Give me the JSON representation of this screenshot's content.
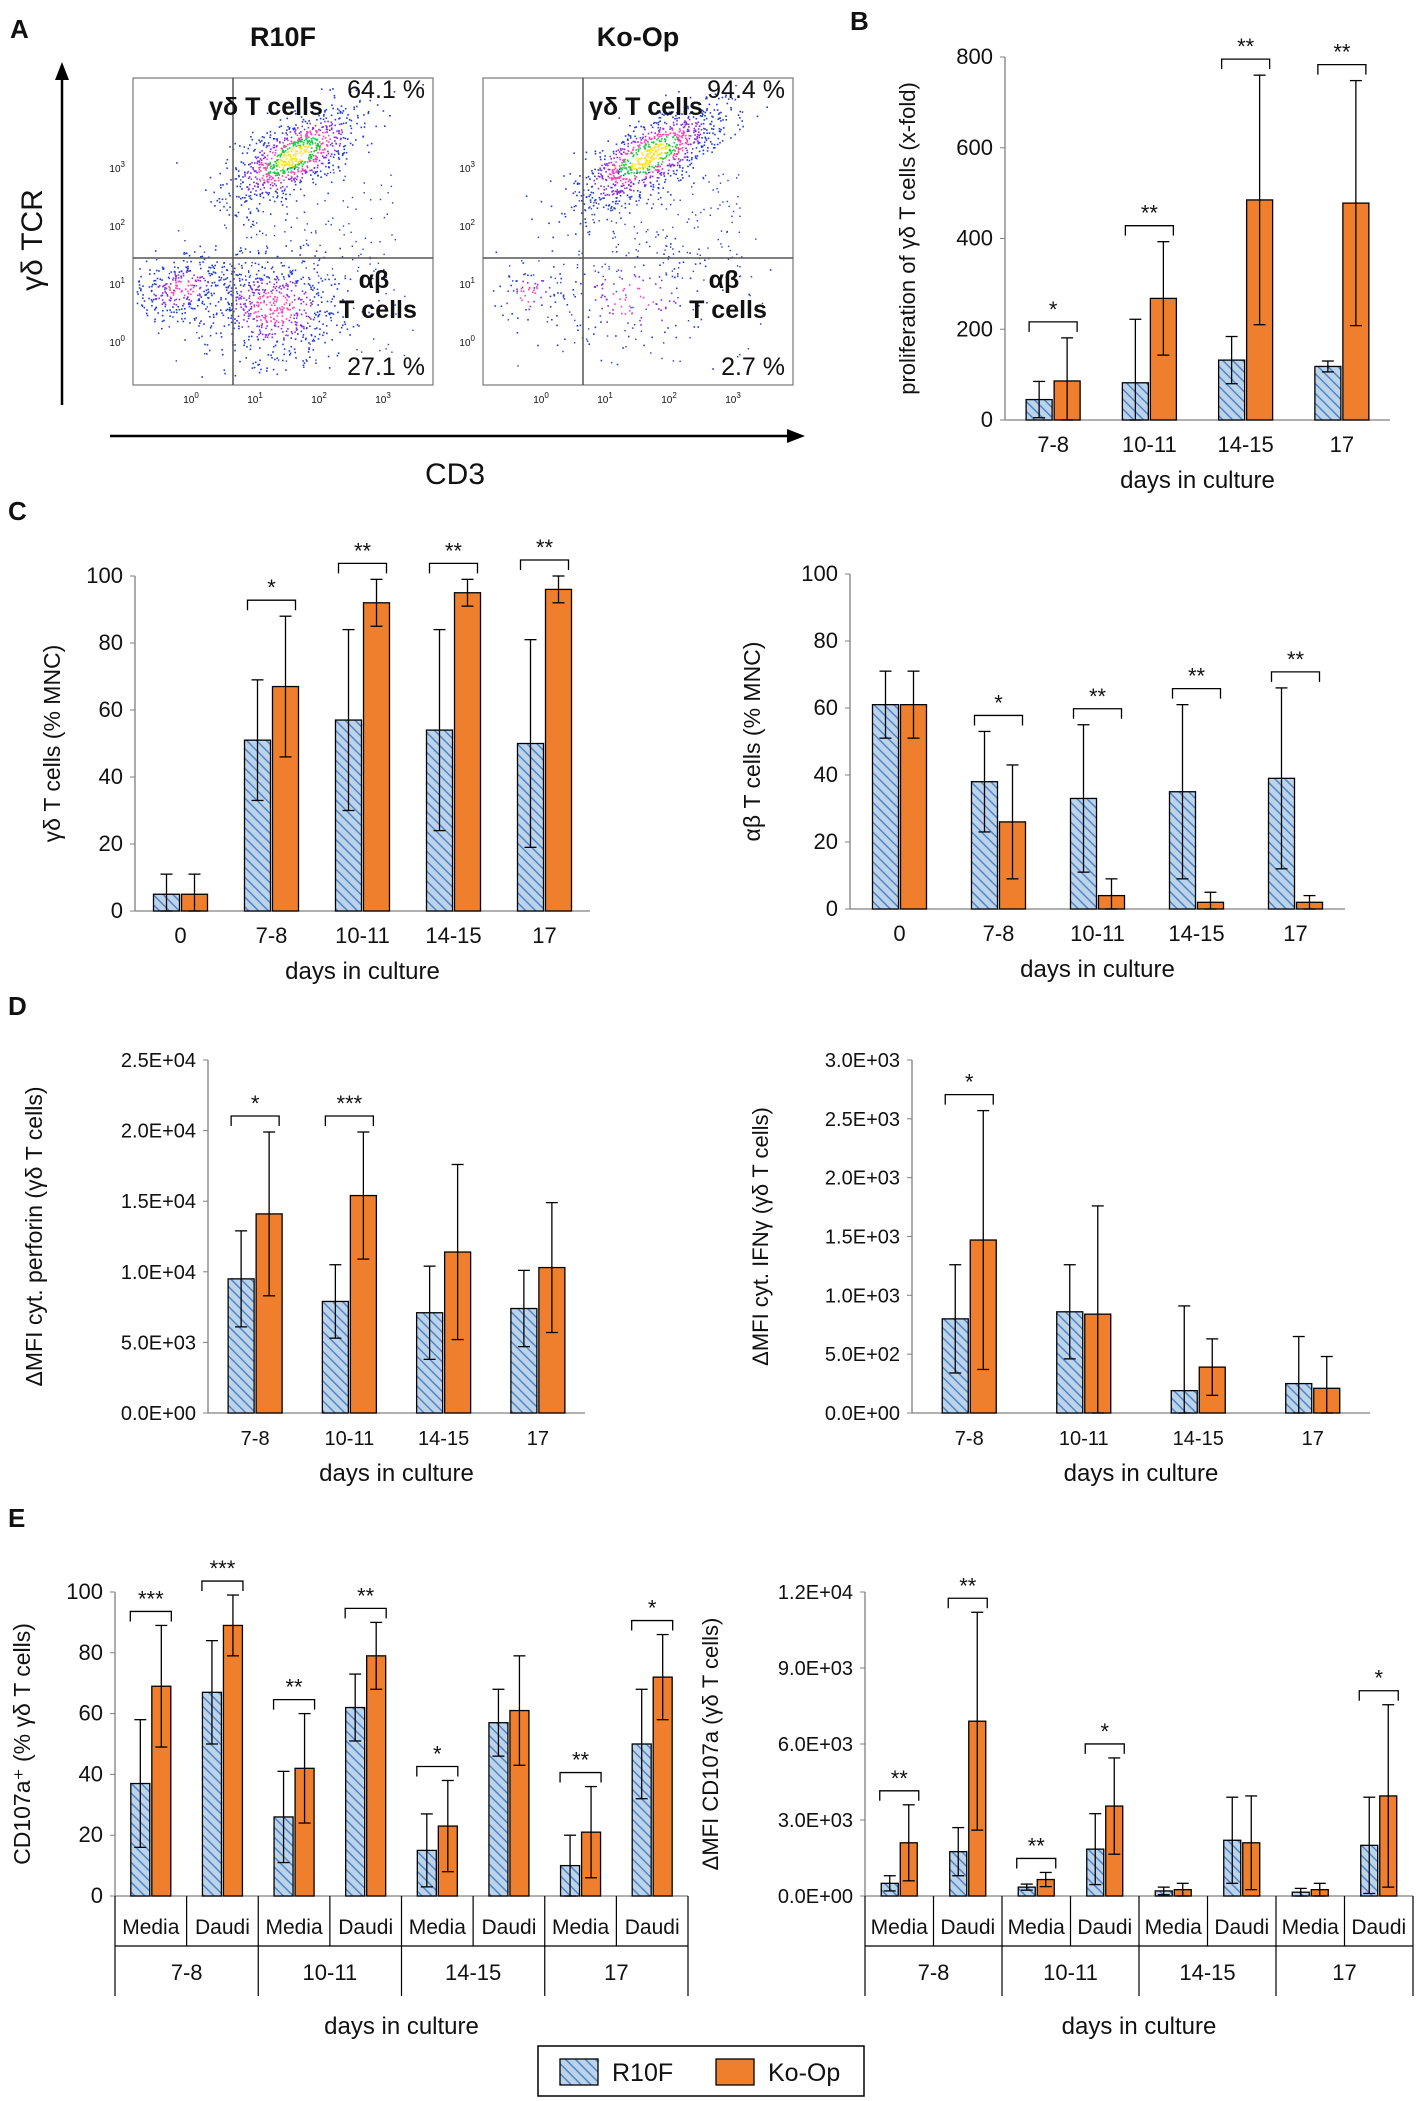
{
  "panel_labels": {
    "A": "A",
    "B": "B",
    "C": "C",
    "D": "D",
    "E": "E"
  },
  "colors": {
    "r10f_fill": "#bcd3ea",
    "r10f_hatch": "#4f86c6",
    "kop_fill": "#ef7f2d",
    "edge": "#000000",
    "axis": "#808080",
    "density": [
      "#1f3bd6",
      "#8a2be2",
      "#ff3fb4",
      "#23c94a",
      "#ffe21a"
    ]
  },
  "legend": {
    "r10f": "R10F",
    "kop": "Ko-Op"
  },
  "chart_data": [
    {
      "id": "A",
      "type": "scatter",
      "plots": [
        {
          "title": "R10F",
          "upper_right_label": "γδ T cells",
          "lower_right_label_1": "αβ",
          "lower_right_label_2": "T cells",
          "upper_pct": "64.1 %",
          "lower_pct": "27.1 %"
        },
        {
          "title": "Ko-Op",
          "upper_right_label": "γδ T cells",
          "lower_right_label_1": "αβ",
          "lower_right_label_2": "T cells",
          "upper_pct": "94.4 %",
          "lower_pct": "2.7 %"
        }
      ],
      "xlabel": "CD3",
      "ylabel": "γδ TCR",
      "xticks_exp": [
        "0",
        "1",
        "2",
        "3"
      ],
      "yticks_exp": [
        "0",
        "1",
        "2",
        "3"
      ],
      "tick_base": "10"
    },
    {
      "id": "B",
      "type": "bar",
      "ylabel": "proliferation of γδ T cells (x-fold)",
      "xlabel": "days in culture",
      "yticks": [
        "0",
        "200",
        "400",
        "600",
        "800"
      ],
      "ylim": [
        0,
        800
      ],
      "categories": [
        "7-8",
        "10-11",
        "14-15",
        "17"
      ],
      "series": [
        {
          "name": "R10F",
          "values": [
            45,
            82,
            132,
            118
          ],
          "errors": [
            40,
            140,
            52,
            12
          ]
        },
        {
          "name": "Ko-Op",
          "values": [
            86,
            268,
            485,
            478
          ],
          "errors": [
            95,
            125,
            275,
            270
          ]
        }
      ],
      "annotations": [
        "*",
        "**",
        "**",
        "**"
      ]
    },
    {
      "id": "C1",
      "type": "bar",
      "ylabel": "γδ T cells (% MNC)",
      "xlabel": "days in culture",
      "yticks": [
        "0",
        "20",
        "40",
        "60",
        "80",
        "100"
      ],
      "ylim": [
        0,
        100
      ],
      "categories": [
        "0",
        "7-8",
        "10-11",
        "14-15",
        "17"
      ],
      "series": [
        {
          "name": "R10F",
          "values": [
            5,
            51,
            57,
            54,
            50
          ],
          "errors": [
            6,
            18,
            27,
            30,
            31
          ]
        },
        {
          "name": "Ko-Op",
          "values": [
            5,
            67,
            92,
            95,
            96
          ],
          "errors": [
            6,
            21,
            7,
            4,
            4
          ]
        }
      ],
      "annotations": [
        "",
        "*",
        "**",
        "**",
        "**"
      ]
    },
    {
      "id": "C2",
      "type": "bar",
      "ylabel": "αβ T cells (% MNC)",
      "xlabel": "days in culture",
      "yticks": [
        "0",
        "20",
        "40",
        "60",
        "80",
        "100"
      ],
      "ylim": [
        0,
        100
      ],
      "categories": [
        "0",
        "7-8",
        "10-11",
        "14-15",
        "17"
      ],
      "series": [
        {
          "name": "R10F",
          "values": [
            61,
            38,
            33,
            35,
            39
          ],
          "errors": [
            10,
            15,
            22,
            26,
            27
          ]
        },
        {
          "name": "Ko-Op",
          "values": [
            61,
            26,
            4,
            2,
            2
          ],
          "errors": [
            10,
            17,
            5,
            3,
            2
          ]
        }
      ],
      "annotations": [
        "",
        "*",
        "**",
        "**",
        "**"
      ]
    },
    {
      "id": "D1",
      "type": "bar",
      "ylabel": "ΔMFI cyt. perforin (γδ T cells)",
      "xlabel": "days in culture",
      "yticks": [
        "0.0E+00",
        "5.0E+03",
        "1.0E+04",
        "1.5E+04",
        "2.0E+04",
        "2.5E+04"
      ],
      "ylim": [
        0,
        25000
      ],
      "categories": [
        "7-8",
        "10-11",
        "14-15",
        "17"
      ],
      "series": [
        {
          "name": "R10F",
          "values": [
            9500,
            7900,
            7100,
            7400
          ],
          "errors": [
            3400,
            2600,
            3300,
            2700
          ]
        },
        {
          "name": "Ko-Op",
          "values": [
            14100,
            15400,
            11400,
            10300
          ],
          "errors": [
            5800,
            4500,
            6200,
            4600
          ]
        }
      ],
      "annotations": [
        "*",
        "***",
        "",
        ""
      ]
    },
    {
      "id": "D2",
      "type": "bar",
      "ylabel": "ΔMFI cyt. IFNγ (γδ T cells)",
      "xlabel": "days in culture",
      "yticks": [
        "0.0E+00",
        "5.0E+02",
        "1.0E+03",
        "1.5E+03",
        "2.0E+03",
        "2.5E+03",
        "3.0E+03"
      ],
      "ylim": [
        0,
        3000
      ],
      "categories": [
        "7-8",
        "10-11",
        "14-15",
        "17"
      ],
      "series": [
        {
          "name": "R10F",
          "values": [
            800,
            860,
            190,
            250
          ],
          "errors": [
            460,
            400,
            720,
            400
          ]
        },
        {
          "name": "Ko-Op",
          "values": [
            1470,
            840,
            390,
            210
          ],
          "errors": [
            1100,
            920,
            240,
            270
          ]
        }
      ],
      "annotations": [
        "*",
        "",
        "",
        ""
      ]
    },
    {
      "id": "E1",
      "type": "bar",
      "ylabel": "CD107a⁺ (% γδ T cells)",
      "xlabel": "days in culture",
      "yticks": [
        "0",
        "20",
        "40",
        "60",
        "80",
        "100"
      ],
      "ylim": [
        0,
        100
      ],
      "subcategories": [
        "Media",
        "Daudi",
        "Media",
        "Daudi",
        "Media",
        "Daudi",
        "Media",
        "Daudi"
      ],
      "groups": [
        "7-8",
        "10-11",
        "14-15",
        "17"
      ],
      "series": [
        {
          "name": "R10F",
          "values": [
            37,
            67,
            26,
            62,
            15,
            57,
            10,
            50
          ],
          "errors": [
            21,
            17,
            15,
            11,
            12,
            11,
            10,
            18
          ]
        },
        {
          "name": "Ko-Op",
          "values": [
            69,
            89,
            42,
            79,
            23,
            61,
            21,
            72
          ],
          "errors": [
            20,
            10,
            18,
            11,
            15,
            18,
            15,
            14
          ]
        }
      ],
      "annotations": [
        "***",
        "***",
        "**",
        "**",
        "*",
        "",
        "**",
        "*"
      ]
    },
    {
      "id": "E2",
      "type": "bar",
      "ylabel": "ΔMFI CD107a (γδ T cells)",
      "xlabel": "days in culture",
      "yticks": [
        "0.0E+00",
        "3.0E+03",
        "6.0E+03",
        "9.0E+03",
        "1.2E+04"
      ],
      "ylim": [
        0,
        12000
      ],
      "subcategories": [
        "Media",
        "Daudi",
        "Media",
        "Daudi",
        "Media",
        "Daudi",
        "Media",
        "Daudi"
      ],
      "groups": [
        "7-8",
        "10-11",
        "14-15",
        "17"
      ],
      "series": [
        {
          "name": "R10F",
          "values": [
            500,
            1750,
            350,
            1850,
            200,
            2200,
            150,
            2000
          ],
          "errors": [
            300,
            950,
            120,
            1400,
            150,
            1700,
            150,
            1900
          ]
        },
        {
          "name": "Ko-Op",
          "values": [
            2100,
            6900,
            650,
            3550,
            250,
            2100,
            250,
            3950
          ],
          "errors": [
            1500,
            4300,
            280,
            1900,
            250,
            1850,
            250,
            3600
          ]
        }
      ],
      "annotations": [
        "**",
        "**",
        "**",
        "*",
        "",
        "",
        "",
        "*"
      ]
    }
  ]
}
